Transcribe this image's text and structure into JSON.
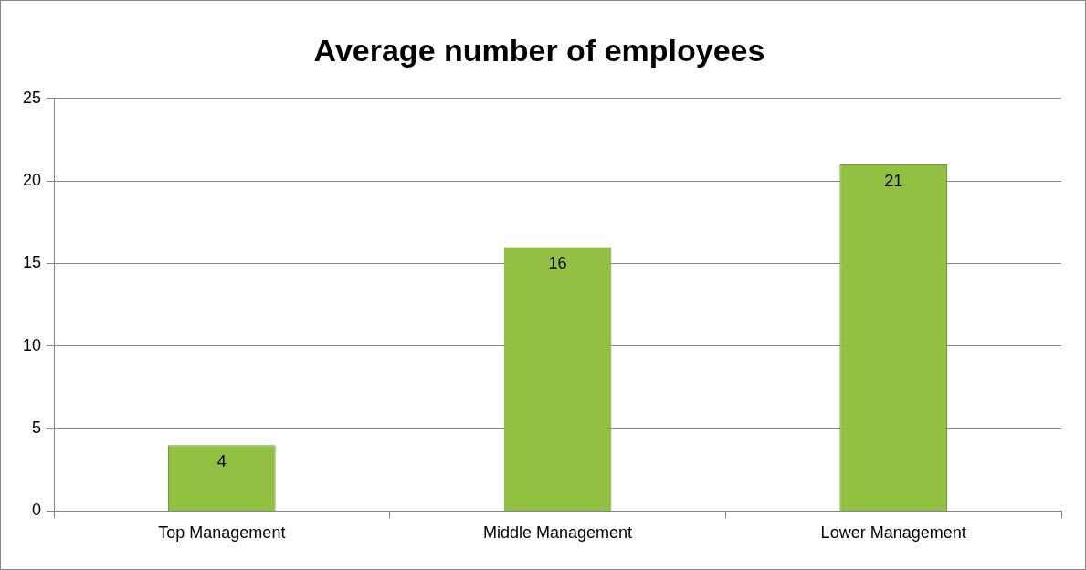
{
  "chart_data": {
    "type": "bar",
    "title": "Average number of employees",
    "categories": [
      "Top Management",
      "Middle Management",
      "Lower Management"
    ],
    "values": [
      4,
      16,
      21
    ],
    "color": "#92c043",
    "ylim": [
      0,
      25
    ],
    "yticks": [
      0,
      5,
      10,
      15,
      20,
      25
    ],
    "grid": "y",
    "data_labels": true,
    "legend": false
  }
}
